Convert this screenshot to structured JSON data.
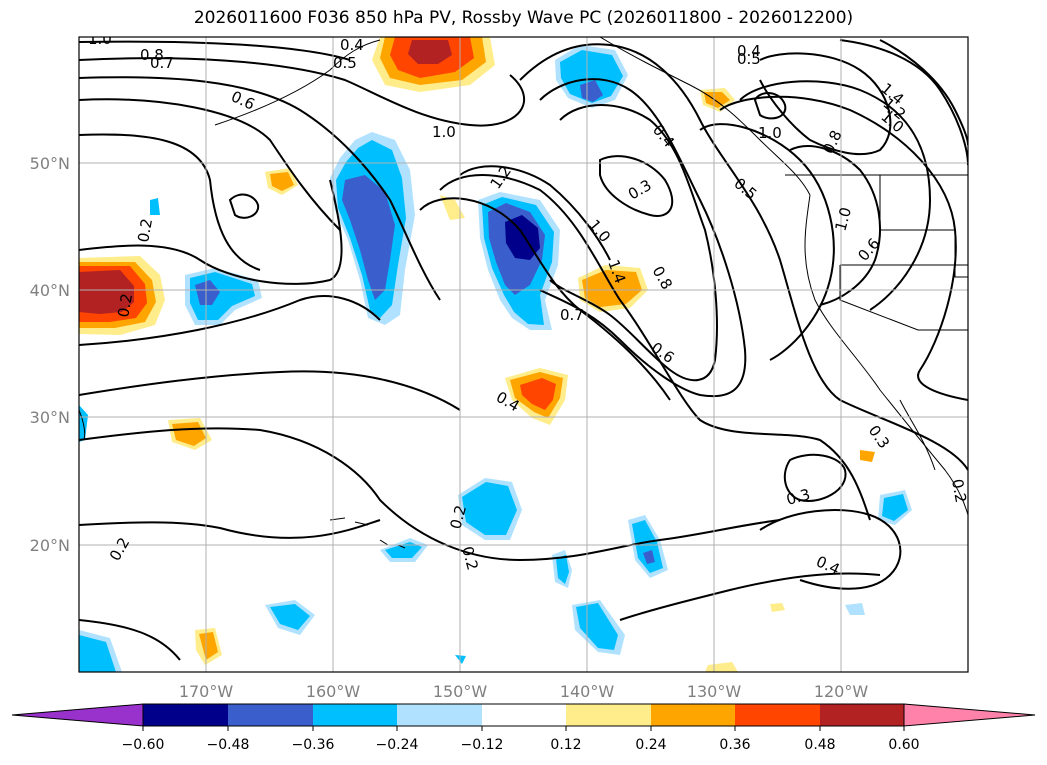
{
  "title": "2026011600 F036 850 hPa PV, Rossby Wave PC (2026011800 - 2026012200)",
  "map": {
    "lon_range": [
      -180,
      -110
    ],
    "lat_range": [
      10,
      60
    ],
    "lon_ticks": [
      "170°W",
      "160°W",
      "150°W",
      "140°W",
      "130°W",
      "120°W"
    ],
    "lat_ticks": [
      "50°N",
      "40°N",
      "30°N",
      "20°N"
    ],
    "contour_labels": [
      "1.0",
      "0.8",
      "0.7",
      "0.6",
      "0.5",
      "0.4",
      "1.0",
      "1.2",
      "1.0",
      "1.4",
      "0.8",
      "0.7",
      "0.6",
      "0.4",
      "0.4",
      "0.3",
      "0.5",
      "0.4",
      "0.5",
      "1.0",
      "0.8",
      "1.0",
      "1.4",
      "1.2",
      "1.0",
      "0.6",
      "0.2",
      "0.2",
      "0.2",
      "0.3",
      "0.3",
      "0.4",
      "0.2",
      "0.2",
      "0.2"
    ]
  },
  "colorbar": {
    "ticks": [
      "−0.60",
      "−0.48",
      "−0.36",
      "−0.24",
      "−0.12",
      "0.12",
      "0.24",
      "0.36",
      "0.48",
      "0.60"
    ],
    "colors": [
      "#9932cc",
      "#00008b",
      "#3a5fcd",
      "#00bfff",
      "#b0e2ff",
      "#ffffff",
      "#ffec8b",
      "#ffa500",
      "#ff4500",
      "#b22222",
      "#ff82ab"
    ]
  }
}
